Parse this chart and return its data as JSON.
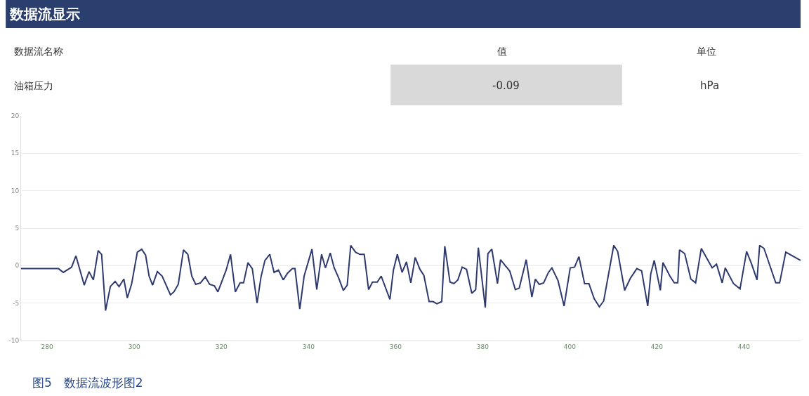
{
  "chart_data": {
    "type": "line",
    "title": "数据流显示",
    "annotations": [
      "数据流名称",
      "值",
      "单位",
      "油箱压力",
      "-0.09",
      "hPa",
      "图5　数据流波形图2"
    ],
    "x": [
      274,
      282.6,
      283.7,
      285.6,
      286.6,
      288.5,
      289.6,
      290.6,
      291.7,
      292.5,
      293.4,
      294.5,
      295.6,
      296.5,
      297.6,
      298.4,
      299.4,
      300.7,
      301.7,
      302.6,
      303.4,
      304.2,
      305.3,
      306.4,
      308.3,
      309.1,
      310.1,
      311.3,
      312.3,
      313.2,
      314.1,
      315.2,
      316.3,
      317.3,
      318.4,
      319.2,
      321.1,
      322.1,
      323.2,
      324.3,
      325.1,
      326.1,
      327.1,
      328.2,
      329.1,
      330.0,
      331.1,
      332.1,
      333.1,
      334.2,
      335.2,
      336.3,
      336.9,
      338.0,
      339.0,
      340.8,
      341.9,
      343.0,
      343.9,
      345.0,
      345.9,
      346.9,
      348.0,
      348.9,
      349.7,
      350.8,
      351.8,
      352.8,
      353.8,
      354.7,
      355.8,
      356.7,
      358.7,
      359.5,
      360.4,
      361.5,
      362.5,
      363.5,
      364.5,
      365.6,
      366.5,
      367.7,
      368.6,
      369.5,
      370.6,
      371.3,
      372.5,
      373.4,
      374.3,
      375.3,
      376.3,
      377.5,
      378.4,
      379.0,
      380.6,
      381.2,
      382.1,
      383.4,
      384.1,
      385.2,
      386.2,
      387.5,
      388.4,
      390.0,
      391.3,
      392.1,
      393.0,
      394.0,
      395.1,
      395.9,
      397.3,
      398.7,
      400.1,
      401.1,
      402.1,
      403.4,
      404.4,
      405.6,
      406.8,
      407.8,
      410.1,
      411.0,
      412.6,
      413.9,
      415.4,
      416.5,
      417.9,
      418.6,
      419.4,
      420.8,
      421.4,
      423.0,
      424.0,
      424.8,
      425.2,
      426.4,
      427.8,
      428.9,
      430.2,
      432.7,
      433.7,
      435.0,
      435.7,
      437.6,
      439.1,
      440.6,
      441.7,
      443.0,
      443.6,
      444.6,
      447.3,
      448.2,
      449.6,
      453
    ],
    "series": [
      {
        "color": "#2e3a6e",
        "values": [
          -0.4,
          -0.4,
          -0.9,
          -0.2,
          1.3,
          -2.6,
          -0.8,
          -1.9,
          2.0,
          1.5,
          -6.0,
          -2.8,
          -2.1,
          -2.8,
          -1.8,
          -4.3,
          -2.4,
          1.8,
          2.2,
          1.4,
          -1.4,
          -2.6,
          -0.8,
          -1.4,
          -3.9,
          -3.5,
          -2.5,
          2.1,
          1.5,
          -1.4,
          -2.5,
          -2.3,
          -1.5,
          -2.5,
          -2.7,
          -3.5,
          -0.6,
          1.5,
          -3.5,
          -2.3,
          -2.3,
          0.4,
          -0.4,
          -5.0,
          -1.5,
          0.7,
          1.5,
          -0.9,
          -0.6,
          -1.9,
          -1.0,
          -0.4,
          -0.4,
          -5.8,
          -1.4,
          2.2,
          -3.2,
          1.5,
          -0.3,
          1.7,
          -0.3,
          -1.6,
          -3.3,
          -2.6,
          2.7,
          1.8,
          1.5,
          1.5,
          -3.2,
          -2.2,
          -2.2,
          -1.4,
          -4.5,
          -0.6,
          1.5,
          -0.9,
          0.5,
          -2.3,
          1.1,
          -0.5,
          -1.3,
          -4.8,
          -4.8,
          -5.1,
          -4.8,
          2.6,
          -2.2,
          -2.4,
          -1.9,
          -0.2,
          -0.5,
          -3.7,
          -3.2,
          2.4,
          -5.6,
          1.6,
          2.2,
          -2.4,
          0.8,
          0.0,
          -0.7,
          -3.2,
          -3.0,
          0.8,
          -4.2,
          -1.8,
          -2.5,
          -2.3,
          -0.9,
          -0.3,
          -2.0,
          -5.4,
          -0.3,
          -0.2,
          1.2,
          -2.4,
          -2.4,
          -4.4,
          -5.5,
          -4.7,
          2.7,
          1.9,
          -3.3,
          -1.7,
          -0.4,
          -0.7,
          -5.4,
          -1.1,
          0.7,
          -3.3,
          0.4,
          -1.4,
          -2.3,
          -2.3,
          2.1,
          1.6,
          -1.8,
          -2.3,
          2.3,
          -0.3,
          0.2,
          -2.3,
          -0.3,
          -2.4,
          -3.1,
          1.9,
          0.3,
          -1.9,
          2.7,
          2.3,
          -2.3,
          -2.3,
          1.8,
          0.7
        ]
      }
    ],
    "xlim": [
      274,
      453
    ],
    "xticks": [
      280,
      300,
      320,
      340,
      360,
      380,
      400,
      420,
      440
    ],
    "ylim": [
      -10,
      20
    ],
    "yticks": [
      -10,
      -5,
      0,
      5,
      10,
      15,
      20
    ],
    "grid": "y",
    "marker": "none",
    "line_style": "solid"
  }
}
